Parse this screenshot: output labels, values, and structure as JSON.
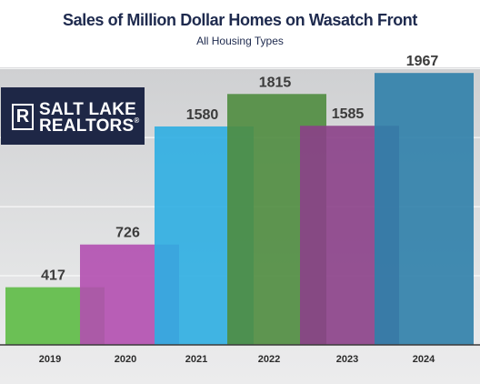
{
  "title": "Sales of Million Dollar Homes on Wasatch Front",
  "subtitle": "All Housing Types",
  "logo": {
    "line1": "SALT LAKE",
    "line2": "REALTORS",
    "mark": "R",
    "registered": "®",
    "background": "#1e2746"
  },
  "colors": {
    "bars": [
      "#5dbb45",
      "#b24fb0",
      "#2eaee2",
      "#4f8c3f",
      "#8b4088",
      "#2f7faa"
    ],
    "gridline": "#ffffff",
    "axis": "#3b3b3b"
  },
  "chart_data": {
    "type": "bar",
    "title": "Sales of Million Dollar Homes on Wasatch Front",
    "subtitle": "All Housing Types",
    "categories": [
      "2019",
      "2020",
      "2021",
      "2022",
      "2023",
      "2024"
    ],
    "values": [
      417,
      726,
      1580,
      1815,
      1585,
      1967
    ],
    "data_labels": [
      "417",
      "726",
      "1580",
      "1815",
      "1585",
      "1967"
    ],
    "xlabel": "",
    "ylabel": "",
    "ylim": [
      0,
      2100
    ],
    "grid": true,
    "legend": "none"
  }
}
